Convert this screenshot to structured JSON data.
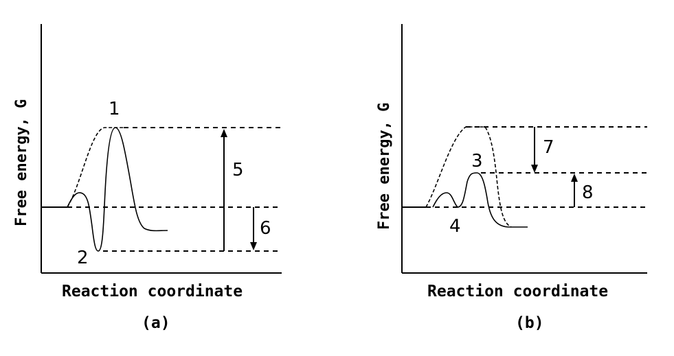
{
  "panels": [
    {
      "caption": "(a)",
      "xlabel": "Reaction coordinate",
      "ylabel": "Free energy, G",
      "markers": [
        "1",
        "2",
        "5",
        "6"
      ]
    },
    {
      "caption": "(b)",
      "xlabel": "Reaction coordinate",
      "ylabel": "Free energy, G",
      "markers": [
        "3",
        "4",
        "7",
        "8"
      ]
    }
  ]
}
